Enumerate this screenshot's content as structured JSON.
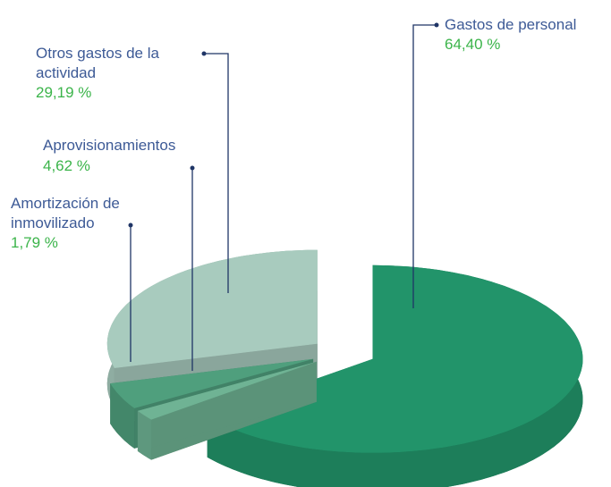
{
  "chart_data": {
    "type": "pie3d",
    "categories": [
      "Gastos de personal",
      "Amortización de inmovilizado",
      "Aprovisionamientos",
      "Otros gastos de la actividad"
    ],
    "values": [
      64.4,
      1.79,
      4.62,
      29.19
    ],
    "value_labels": [
      "64,40 %",
      "1,79 %",
      "4,62 %",
      "29,19 %"
    ],
    "colors": [
      "#22946a",
      "#6fb394",
      "#4f9f7d",
      "#a8cbbe"
    ]
  }
}
